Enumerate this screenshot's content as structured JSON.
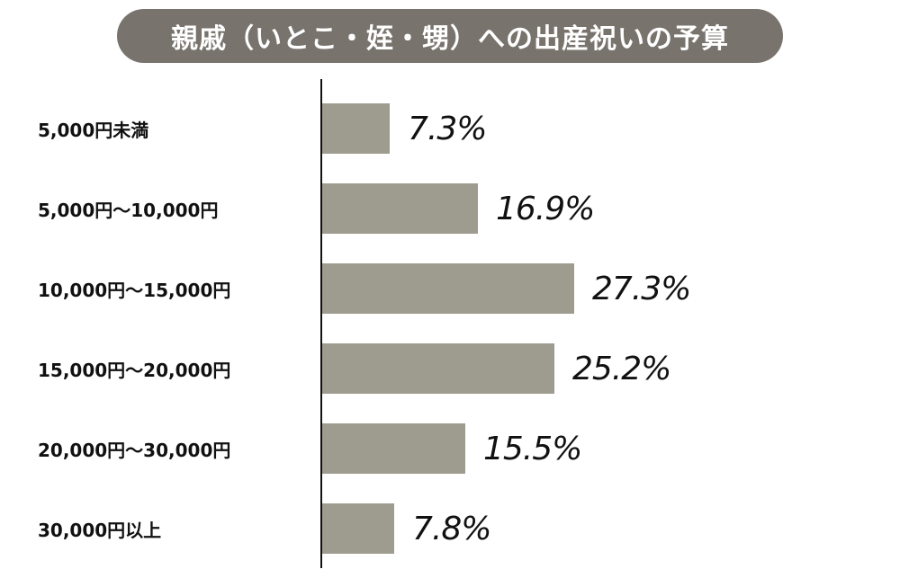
{
  "title": "親戚（いとこ・姪・甥）への出産祝いの予算",
  "colors": {
    "title_bg": "#78736c",
    "title_text": "#ffffff",
    "bar": "#9e9c8f",
    "axis": "#111111",
    "text": "#111111"
  },
  "rows": [
    {
      "label": "5,000円未満",
      "value_label": "7.3%"
    },
    {
      "label": "5,000円〜10,000円",
      "value_label": "16.9%"
    },
    {
      "label": "10,000円〜15,000円",
      "value_label": "27.3%"
    },
    {
      "label": "15,000円〜20,000円",
      "value_label": "25.2%"
    },
    {
      "label": "20,000円〜30,000円",
      "value_label": "15.5%"
    },
    {
      "label": "30,000円以上",
      "value_label": "7.8%"
    }
  ],
  "chart_data": {
    "type": "bar",
    "orientation": "horizontal",
    "title": "親戚（いとこ・姪・甥）への出産祝いの予算",
    "categories": [
      "5,000円未満",
      "5,000円〜10,000円",
      "10,000円〜15,000円",
      "15,000円〜20,000円",
      "20,000円〜30,000円",
      "30,000円以上"
    ],
    "values": [
      7.3,
      16.9,
      27.3,
      25.2,
      15.5,
      7.8
    ],
    "unit": "%",
    "xlabel": "",
    "ylabel": "",
    "xlim": [
      0,
      30
    ],
    "grid": false,
    "legend": null,
    "data_labels": true
  }
}
